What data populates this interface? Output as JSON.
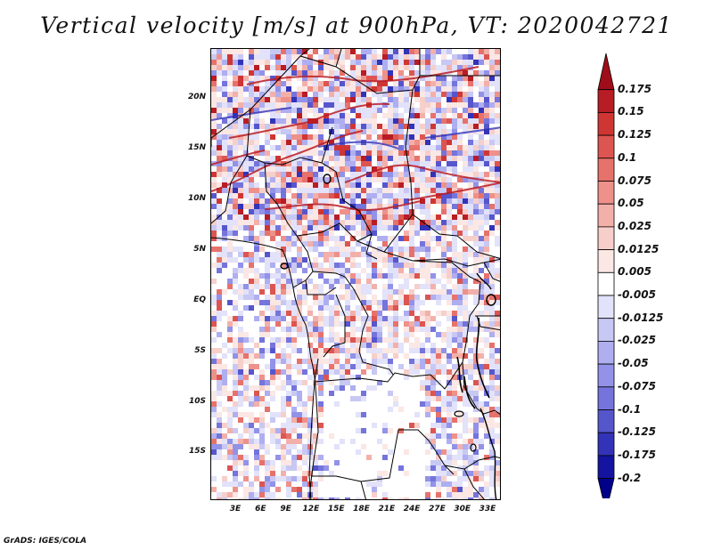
{
  "title": "Vertical velocity [m/s] at 900hPa, VT: 2020042721",
  "credit": "GrADS: IGES/COLA",
  "map": {
    "lat_labels": [
      "20N",
      "15N",
      "10N",
      "5N",
      "EQ",
      "5S",
      "10S",
      "15S"
    ],
    "lon_labels": [
      "3E",
      "6E",
      "9E",
      "12E",
      "15E",
      "18E",
      "21E",
      "24E",
      "27E",
      "30E",
      "33E"
    ]
  },
  "legend": {
    "labels": [
      "0.175",
      "0.15",
      "0.125",
      "0.1",
      "0.075",
      "0.05",
      "0.025",
      "0.0125",
      "0.005",
      "-0.005",
      "-0.0125",
      "-0.025",
      "-0.05",
      "-0.075",
      "-0.1",
      "-0.125",
      "-0.175",
      "-0.2"
    ],
    "colors": [
      "#a00d1a",
      "#b81c24",
      "#cf3633",
      "#dd5550",
      "#e7726b",
      "#ee918a",
      "#f3b0aa",
      "#f7cfca",
      "#fbe7e4",
      "#ffffff",
      "#e2e2fa",
      "#c8c8f4",
      "#aeaef0",
      "#9292e8",
      "#7474dc",
      "#5656cc",
      "#3333b8",
      "#1414a0",
      "#00008a"
    ]
  },
  "chart_data": {
    "type": "heatmap",
    "title": "Vertical velocity [m/s] at 900hPa, VT: 2020042721",
    "variable": "Vertical velocity",
    "units": "m/s",
    "level": "900hPa",
    "valid_time": "2020042721",
    "lat_range": [
      -20,
      25
    ],
    "lon_range": [
      0,
      35
    ],
    "colorbar_levels": [
      0.175,
      0.15,
      0.125,
      0.1,
      0.075,
      0.05,
      0.025,
      0.0125,
      0.005,
      -0.005,
      -0.0125,
      -0.025,
      -0.05,
      -0.075,
      -0.1,
      -0.125,
      -0.175,
      -0.2
    ]
  }
}
